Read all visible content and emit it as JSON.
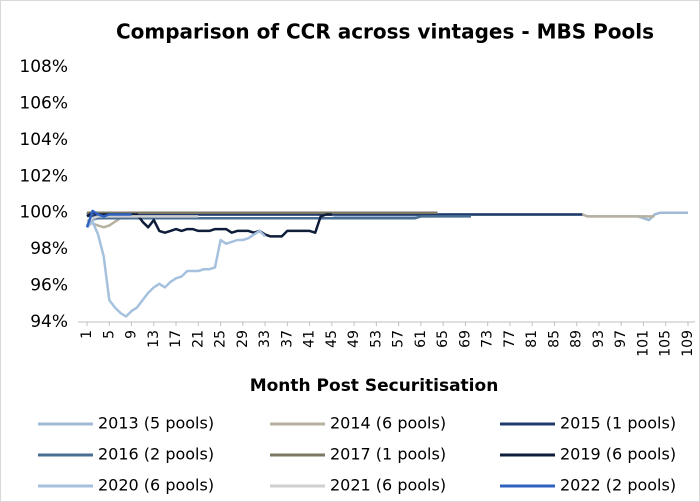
{
  "chart_data": {
    "type": "line",
    "title": "Comparison of CCR across vintages - MBS Pools",
    "x_label": "Month Post Securitisation",
    "x": [
      1,
      2,
      3,
      4,
      5,
      6,
      7,
      8,
      9,
      10,
      11,
      12,
      13,
      14,
      15,
      16,
      17,
      18,
      19,
      20,
      21,
      22,
      23,
      24,
      25,
      26,
      27,
      28,
      29,
      30,
      31,
      32,
      33,
      34,
      35,
      36,
      37,
      38,
      39,
      40,
      41,
      42,
      43,
      44,
      45,
      46,
      47,
      48,
      49,
      50,
      51,
      52,
      53,
      54,
      55,
      56,
      57,
      58,
      59,
      60,
      61,
      62,
      63,
      64,
      65,
      66,
      67,
      68,
      69,
      70,
      71,
      72,
      73,
      74,
      75,
      76,
      77,
      78,
      79,
      80,
      81,
      82,
      83,
      84,
      85,
      86,
      87,
      88,
      89,
      90,
      91,
      92,
      93,
      94,
      95,
      96,
      97,
      98,
      99,
      100,
      101,
      102,
      103,
      104,
      105,
      106,
      107,
      108,
      109
    ],
    "xlim": [
      1,
      109
    ],
    "xticks": [
      1,
      5,
      9,
      13,
      17,
      21,
      25,
      29,
      33,
      37,
      41,
      45,
      49,
      53,
      57,
      61,
      65,
      69,
      73,
      77,
      81,
      85,
      89,
      93,
      97,
      101,
      105,
      109
    ],
    "ylim": [
      94,
      108
    ],
    "yticks": [
      {
        "value": 94,
        "label": "94%"
      },
      {
        "value": 96,
        "label": "96%"
      },
      {
        "value": 98,
        "label": "98%"
      },
      {
        "value": 100,
        "label": "100%"
      },
      {
        "value": 102,
        "label": "102%"
      },
      {
        "value": 104,
        "label": "104%"
      },
      {
        "value": 106,
        "label": "106%"
      },
      {
        "value": 108,
        "label": "108%"
      }
    ],
    "grid": false,
    "legend": "bottom",
    "series": [
      {
        "name": "2013 (5 pools)",
        "color": "#9fb9d6",
        "values": [
          99.3,
          99.6,
          99.7,
          99.7,
          99.7,
          99.7,
          99.7,
          99.7,
          99.7,
          99.7,
          99.7,
          99.7,
          99.7,
          99.7,
          99.7,
          99.7,
          99.7,
          99.7,
          99.7,
          99.7,
          99.7,
          99.7,
          99.7,
          99.7,
          99.7,
          99.7,
          99.7,
          99.7,
          99.7,
          99.7,
          99.7,
          99.7,
          99.7,
          99.7,
          99.7,
          99.7,
          99.7,
          99.7,
          99.7,
          99.7,
          99.7,
          99.7,
          99.7,
          99.7,
          99.7,
          99.8,
          99.8,
          99.8,
          99.8,
          99.8,
          99.8,
          99.8,
          99.8,
          99.8,
          99.8,
          99.8,
          99.8,
          99.8,
          99.8,
          99.8,
          99.9,
          99.9,
          99.9,
          99.9,
          99.9,
          99.9,
          99.9,
          99.9,
          99.9,
          99.9,
          99.9,
          99.9,
          99.9,
          99.9,
          99.9,
          99.9,
          99.9,
          99.9,
          99.9,
          99.9,
          99.9,
          99.9,
          99.9,
          99.9,
          99.9,
          99.9,
          99.9,
          99.9,
          99.9,
          99.9,
          99.8,
          99.8,
          99.8,
          99.8,
          99.8,
          99.8,
          99.8,
          99.8,
          99.8,
          99.8,
          99.7,
          99.6,
          99.9,
          100,
          100,
          100,
          100,
          100,
          100
        ]
      },
      {
        "name": "2014 (6 pools)",
        "color": "#b7b1a0",
        "values": [
          99.6,
          99.4,
          99.3,
          99.2,
          99.3,
          99.5,
          99.7,
          99.7,
          99.7,
          99.7,
          99.7,
          99.7,
          99.7,
          99.7,
          99.7,
          99.7,
          99.7,
          99.7,
          99.7,
          99.7,
          99.9,
          99.9,
          99.9,
          99.9,
          99.9,
          99.9,
          99.9,
          99.9,
          99.9,
          99.9,
          99.9,
          99.9,
          99.9,
          99.9,
          99.9,
          99.9,
          99.9,
          99.9,
          99.9,
          99.9,
          99.9,
          99.9,
          99.9,
          99.9,
          99.9,
          99.9,
          99.9,
          99.9,
          99.9,
          99.9,
          99.9,
          99.9,
          99.9,
          99.9,
          99.9,
          99.9,
          99.9,
          99.9,
          99.9,
          99.9,
          99.8,
          99.8,
          99.8,
          99.8,
          99.9,
          99.9,
          99.9,
          99.9,
          99.9,
          99.9,
          99.9,
          99.9,
          99.9,
          99.9,
          99.9,
          99.9,
          99.9,
          99.9,
          99.9,
          99.9,
          99.9,
          99.9,
          99.9,
          99.9,
          99.9,
          99.9,
          99.9,
          99.9,
          99.9,
          99.9,
          99.8,
          99.8,
          99.8,
          99.8,
          99.8,
          99.8,
          99.8,
          99.8,
          99.8,
          99.8,
          99.8,
          99.8,
          99.8,
          null,
          null,
          null,
          null,
          null,
          null
        ]
      },
      {
        "name": "2015 (1 pools)",
        "color": "#1f3b6e",
        "values": [
          100,
          99.8,
          99.9,
          99.9,
          99.9,
          99.9,
          99.9,
          99.9,
          99.9,
          99.9,
          99.9,
          99.9,
          99.9,
          99.9,
          99.9,
          99.9,
          99.9,
          99.9,
          99.9,
          99.9,
          99.9,
          99.9,
          99.9,
          99.9,
          99.9,
          99.9,
          99.9,
          99.9,
          99.9,
          99.9,
          99.9,
          99.9,
          99.9,
          99.9,
          99.9,
          99.9,
          99.9,
          99.9,
          99.9,
          99.9,
          99.9,
          99.9,
          99.9,
          99.9,
          99.9,
          99.9,
          99.9,
          99.9,
          99.9,
          99.9,
          99.9,
          99.9,
          99.9,
          99.9,
          99.9,
          99.9,
          99.9,
          99.9,
          99.9,
          99.9,
          99.9,
          99.9,
          99.9,
          99.9,
          99.9,
          99.9,
          99.9,
          99.9,
          99.9,
          99.9,
          99.9,
          99.9,
          99.9,
          99.9,
          99.9,
          99.9,
          99.9,
          99.9,
          99.9,
          99.9,
          99.9,
          99.9,
          99.9,
          99.9,
          99.9,
          99.9,
          99.9,
          99.9,
          99.9,
          99.9,
          null,
          null,
          null,
          null,
          null,
          null,
          null,
          null,
          null,
          null,
          null,
          null,
          null,
          null,
          null,
          null,
          null,
          null,
          null
        ]
      },
      {
        "name": "2016 (2 pools)",
        "color": "#4a6e93",
        "values": [
          99.9,
          99.7,
          99.7,
          99.7,
          99.7,
          99.7,
          99.7,
          99.7,
          99.7,
          99.7,
          99.7,
          99.7,
          99.7,
          99.7,
          99.7,
          99.7,
          99.7,
          99.7,
          99.7,
          99.7,
          99.7,
          99.7,
          99.7,
          99.7,
          99.7,
          99.7,
          99.7,
          99.7,
          99.7,
          99.7,
          99.7,
          99.7,
          99.7,
          99.7,
          99.7,
          99.7,
          99.7,
          99.7,
          99.7,
          99.7,
          99.7,
          99.7,
          99.7,
          99.7,
          99.7,
          99.7,
          99.7,
          99.7,
          99.7,
          99.7,
          99.7,
          99.7,
          99.7,
          99.7,
          99.7,
          99.7,
          99.7,
          99.7,
          99.7,
          99.7,
          99.8,
          99.8,
          99.8,
          99.8,
          99.8,
          99.8,
          99.8,
          99.8,
          99.8,
          99.8,
          null,
          null,
          null,
          null,
          null,
          null,
          null,
          null,
          null,
          null,
          null,
          null,
          null,
          null,
          null,
          null,
          null,
          null,
          null,
          null,
          null,
          null,
          null,
          null,
          null,
          null,
          null,
          null,
          null,
          null,
          null,
          null,
          null,
          null,
          null,
          null,
          null,
          null,
          null
        ]
      },
      {
        "name": "2017 (1 pools)",
        "color": "#7d7864",
        "values": [
          100,
          100,
          100,
          100,
          100,
          100,
          100,
          100,
          100,
          100,
          100,
          100,
          100,
          100,
          100,
          100,
          100,
          100,
          100,
          100,
          100,
          100,
          100,
          100,
          100,
          100,
          100,
          100,
          100,
          100,
          100,
          100,
          100,
          100,
          100,
          100,
          100,
          100,
          100,
          100,
          100,
          100,
          100,
          100,
          100,
          100,
          100,
          100,
          100,
          100,
          100,
          100,
          100,
          100,
          100,
          100,
          100,
          100,
          100,
          100,
          100,
          100,
          100,
          100,
          null,
          null,
          null,
          null,
          null,
          null,
          null,
          null,
          null,
          null,
          null,
          null,
          null,
          null,
          null,
          null,
          null,
          null,
          null,
          null,
          null,
          null,
          null,
          null,
          null,
          null,
          null,
          null,
          null,
          null,
          null,
          null,
          null,
          null,
          null,
          null,
          null,
          null,
          null,
          null,
          null,
          null,
          null,
          null,
          null
        ]
      },
      {
        "name": "2019 (6 pools)",
        "color": "#0e1d3a",
        "values": [
          99.8,
          100,
          99.9,
          99.9,
          99.9,
          99.9,
          99.9,
          99.9,
          99.9,
          99.9,
          99.5,
          99.2,
          99.6,
          99.0,
          98.9,
          99.0,
          99.1,
          99.0,
          99.1,
          99.1,
          99.0,
          99.0,
          99.0,
          99.1,
          99.1,
          99.1,
          98.9,
          99.0,
          99.0,
          99.0,
          98.9,
          99.0,
          98.8,
          98.7,
          98.7,
          98.7,
          99.0,
          99.0,
          99.0,
          99.0,
          99.0,
          98.9,
          99.8,
          99.9,
          99.9,
          null,
          null,
          null,
          null,
          null,
          null,
          null,
          null,
          null,
          null,
          null,
          null,
          null,
          null,
          null,
          null,
          null,
          null,
          null,
          null,
          null,
          null,
          null,
          null,
          null,
          null,
          null,
          null,
          null,
          null,
          null,
          null,
          null,
          null,
          null,
          null,
          null,
          null,
          null,
          null,
          null,
          null,
          null,
          null,
          null,
          null,
          null,
          null,
          null,
          null,
          null,
          null,
          null,
          null,
          null,
          null,
          null,
          null,
          null,
          null,
          null,
          null,
          null,
          null
        ]
      },
      {
        "name": "2020 (6 pools)",
        "color": "#a6c1de",
        "values": [
          99.2,
          99.5,
          98.8,
          97.6,
          95.2,
          94.8,
          94.5,
          94.3,
          94.6,
          94.8,
          95.2,
          95.6,
          95.9,
          96.1,
          95.9,
          96.2,
          96.4,
          96.5,
          96.8,
          96.8,
          96.8,
          96.9,
          96.9,
          97.0,
          98.5,
          98.3,
          98.4,
          98.5,
          98.5,
          98.6,
          98.8,
          99.0,
          98.7,
          null,
          null,
          null,
          null,
          null,
          null,
          null,
          null,
          null,
          null,
          null,
          null,
          null,
          null,
          null,
          null,
          null,
          null,
          null,
          null,
          null,
          null,
          null,
          null,
          null,
          null,
          null,
          null,
          null,
          null,
          null,
          null,
          null,
          null,
          null,
          null,
          null,
          null,
          null,
          null,
          null,
          null,
          null,
          null,
          null,
          null,
          null,
          null,
          null,
          null,
          null,
          null,
          null,
          null,
          null,
          null,
          null,
          null,
          null,
          null,
          null,
          null,
          null,
          null,
          null,
          null,
          null,
          null,
          null,
          null,
          null,
          null,
          null,
          null,
          null,
          null
        ]
      },
      {
        "name": "2021 (6 pools)",
        "color": "#cfcfcf",
        "values": [
          99.5,
          99.7,
          99.8,
          99.8,
          99.8,
          99.8,
          99.8,
          99.8,
          99.8,
          99.8,
          99.8,
          99.8,
          99.8,
          99.8,
          99.8,
          99.8,
          99.8,
          99.8,
          99.8,
          99.8,
          99.8,
          null,
          null,
          null,
          null,
          null,
          null,
          null,
          null,
          null,
          null,
          null,
          null,
          null,
          null,
          null,
          null,
          null,
          null,
          null,
          null,
          null,
          null,
          null,
          null,
          null,
          null,
          null,
          null,
          null,
          null,
          null,
          null,
          null,
          null,
          null,
          null,
          null,
          null,
          null,
          null,
          null,
          null,
          null,
          null,
          null,
          null,
          null,
          null,
          null,
          null,
          null,
          null,
          null,
          null,
          null,
          null,
          null,
          null,
          null,
          null,
          null,
          null,
          null,
          null,
          null,
          null,
          null,
          null,
          null,
          null,
          null,
          null,
          null,
          null,
          null,
          null,
          null,
          null,
          null,
          null,
          null,
          null,
          null,
          null,
          null,
          null,
          null,
          null
        ]
      },
      {
        "name": "2022 (2 pools)",
        "color": "#2f62c0",
        "values": [
          99.2,
          100.1,
          99.9,
          99.8,
          99.9,
          99.9,
          99.9,
          99.9,
          99.9,
          null,
          null,
          null,
          null,
          null,
          null,
          null,
          null,
          null,
          null,
          null,
          null,
          null,
          null,
          null,
          null,
          null,
          null,
          null,
          null,
          null,
          null,
          null,
          null,
          null,
          null,
          null,
          null,
          null,
          null,
          null,
          null,
          null,
          null,
          null,
          null,
          null,
          null,
          null,
          null,
          null,
          null,
          null,
          null,
          null,
          null,
          null,
          null,
          null,
          null,
          null,
          null,
          null,
          null,
          null,
          null,
          null,
          null,
          null,
          null,
          null,
          null,
          null,
          null,
          null,
          null,
          null,
          null,
          null,
          null,
          null,
          null,
          null,
          null,
          null,
          null,
          null,
          null,
          null,
          null,
          null,
          null,
          null,
          null,
          null,
          null,
          null,
          null,
          null,
          null,
          null,
          null,
          null,
          null,
          null,
          null,
          null,
          null,
          null,
          null
        ]
      }
    ]
  }
}
